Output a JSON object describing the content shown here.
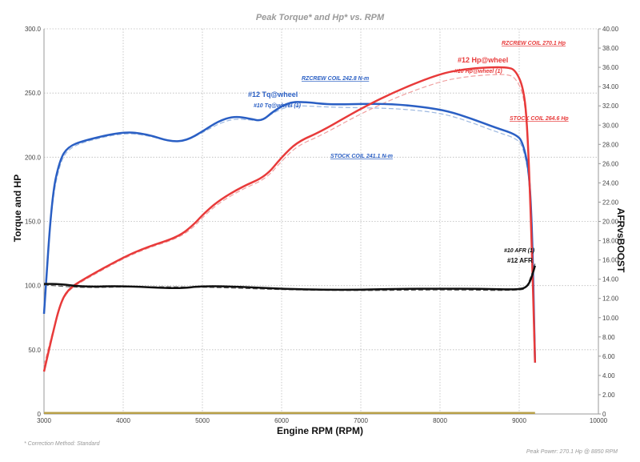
{
  "chart_data": {
    "type": "line",
    "title": "Peak Torque* and Hp* vs. RPM",
    "xlabel": "Engine RPM (RPM)",
    "ylabel": "Torque and HP",
    "y2label": "AFRvsBOOST",
    "xlim": [
      3000,
      10000
    ],
    "ylim": [
      0,
      300
    ],
    "y2lim": [
      0,
      40
    ],
    "x_ticks": [
      "3000",
      "4000",
      "5000",
      "6000",
      "7000",
      "8000",
      "9000",
      "10000"
    ],
    "y_ticks": [
      "0",
      "50.0",
      "100.0",
      "150.0",
      "200.0",
      "250.0",
      "300.0"
    ],
    "y2_ticks": [
      "0",
      "2.00",
      "4.00",
      "6.00",
      "8.00",
      "10.00",
      "12.00",
      "14.00",
      "16.00",
      "18.00",
      "20.00",
      "22.00",
      "24.00",
      "26.00",
      "28.00",
      "30.00",
      "32.00",
      "34.00",
      "36.00",
      "38.00",
      "40.00"
    ],
    "grid": true,
    "series": [
      {
        "name": "#12 Tq@wheel",
        "axis": "left",
        "color": "#2a5fc4",
        "style": "solid",
        "x": [
          3000,
          3100,
          3200,
          3300,
          3500,
          4000,
          4300,
          4600,
          4800,
          5000,
          5200,
          5400,
          5600,
          5750,
          5900,
          6100,
          6300,
          6600,
          7000,
          7400,
          7800,
          8100,
          8400,
          8700,
          8950,
          9050,
          9150,
          9200
        ],
        "y": [
          78,
          170,
          198,
          208,
          213,
          220,
          218,
          212,
          213,
          220,
          228,
          232,
          230,
          228,
          236,
          243,
          243,
          241,
          241.5,
          241.5,
          239,
          236,
          230,
          223,
          218,
          212,
          180,
          40
        ]
      },
      {
        "name": "#10 Tq@wheel (1)",
        "axis": "left",
        "color": "#9db8e0",
        "style": "dashed",
        "x": [
          3000,
          3100,
          3200,
          3300,
          3500,
          4000,
          4300,
          4600,
          4800,
          5000,
          5200,
          5400,
          5600,
          5750,
          5900,
          6100,
          6300,
          6600,
          7000,
          7400,
          7800,
          8100,
          8400,
          8700,
          8950,
          9050,
          9150,
          9200
        ],
        "y": [
          85,
          165,
          195,
          206,
          212,
          219,
          217,
          212,
          213,
          219,
          226,
          230,
          229,
          228,
          235,
          240,
          240,
          239,
          238.5,
          238,
          236,
          233,
          227,
          220,
          215,
          209,
          175,
          45
        ]
      },
      {
        "name": "#12 Hp@wheel",
        "axis": "left",
        "color": "#e83a3a",
        "style": "solid",
        "x": [
          3000,
          3100,
          3200,
          3300,
          3500,
          4000,
          4300,
          4700,
          4900,
          5000,
          5200,
          5500,
          5800,
          6000,
          6200,
          6500,
          7000,
          7500,
          8000,
          8300,
          8600,
          8850,
          8950,
          9050,
          9100,
          9150,
          9200
        ],
        "y": [
          33,
          60,
          85,
          97,
          105,
          122,
          130,
          138,
          148,
          155,
          166,
          177,
          185,
          200,
          212,
          220,
          238,
          253,
          265,
          268.5,
          270,
          270.1,
          268,
          255,
          228,
          150,
          40
        ]
      },
      {
        "name": "#10 Hp@wheel (1)",
        "axis": "left",
        "color": "#f0a0a0",
        "style": "dashed",
        "x": [
          3000,
          3100,
          3200,
          3300,
          3500,
          4000,
          4300,
          4700,
          4900,
          5000,
          5200,
          5500,
          5800,
          6000,
          6200,
          6500,
          7000,
          7500,
          8000,
          8300,
          8600,
          8850,
          8950,
          9050,
          9100,
          9150,
          9200
        ],
        "y": [
          38,
          62,
          84,
          96,
          104,
          121,
          129,
          137,
          146,
          153,
          164,
          175,
          183,
          197,
          209,
          217,
          234,
          248,
          259,
          262.5,
          264.2,
          264.6,
          262,
          250,
          224,
          148,
          42
        ]
      },
      {
        "name": "#12 AFR",
        "axis": "right",
        "color": "#111111",
        "style": "solid",
        "x": [
          3000,
          3200,
          3500,
          4000,
          4700,
          5000,
          5500,
          6000,
          6500,
          7000,
          7500,
          8000,
          8500,
          9000,
          9100,
          9150,
          9200
        ],
        "y": [
          13.5,
          13.5,
          13.2,
          13.3,
          13.0,
          13.3,
          13.2,
          13.0,
          12.9,
          12.9,
          13.0,
          13.0,
          13.0,
          12.9,
          13.2,
          14.0,
          15.4
        ]
      },
      {
        "name": "#10 AFR (1)",
        "axis": "right",
        "color": "#555555",
        "style": "dashed",
        "x": [
          3000,
          3500,
          4000,
          5000,
          6000,
          7000,
          8000,
          9000,
          9100,
          9200
        ],
        "y": [
          13.4,
          13.1,
          13.2,
          13.2,
          12.9,
          12.8,
          12.9,
          12.8,
          13.1,
          15.6
        ]
      },
      {
        "name": "BOOST",
        "axis": "right",
        "color": "#b8a04a",
        "style": "solid",
        "x": [
          3000,
          9200
        ],
        "y": [
          0.1,
          0.1
        ]
      }
    ],
    "annotations": [
      {
        "text": "RZCREW COIL 270.1 Hp",
        "color": "#e83a3a"
      },
      {
        "text": "STOCK COIL 264.6 Hp",
        "color": "#e83a3a"
      },
      {
        "text": "RZCREW COIL 242.8 N-m",
        "color": "#2a5fc4"
      },
      {
        "text": "STOCK COIL 241.1 N-m",
        "color": "#2a5fc4"
      }
    ],
    "footer_left": "* Correction Method: Standard",
    "footer_right": "Peak Power: 270.1 Hp @ 8850 RPM"
  }
}
